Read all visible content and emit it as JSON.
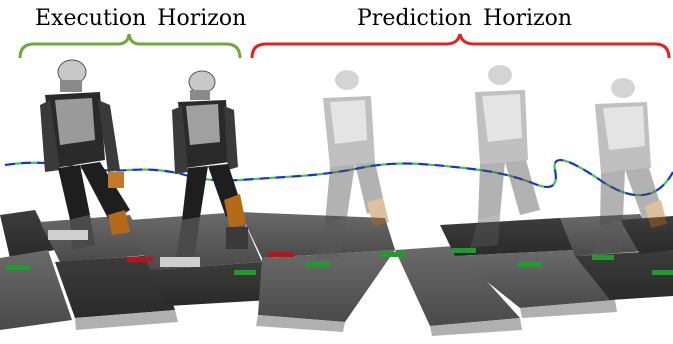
{
  "labels": {
    "execution": "Execution Horizon",
    "prediction": "Prediction Horizon"
  },
  "colors": {
    "execution_brace": "#6fa83a",
    "prediction_brace": "#e3201b",
    "trajectory_blue": "#1a2fd6",
    "trajectory_green": "#39d13a",
    "stepping_stone": "#5a5a5a",
    "footprint_green": "#1f9d2a",
    "footprint_red": "#b8141b"
  },
  "scene": {
    "robots_solid": 2,
    "robots_ghost": 3
  }
}
